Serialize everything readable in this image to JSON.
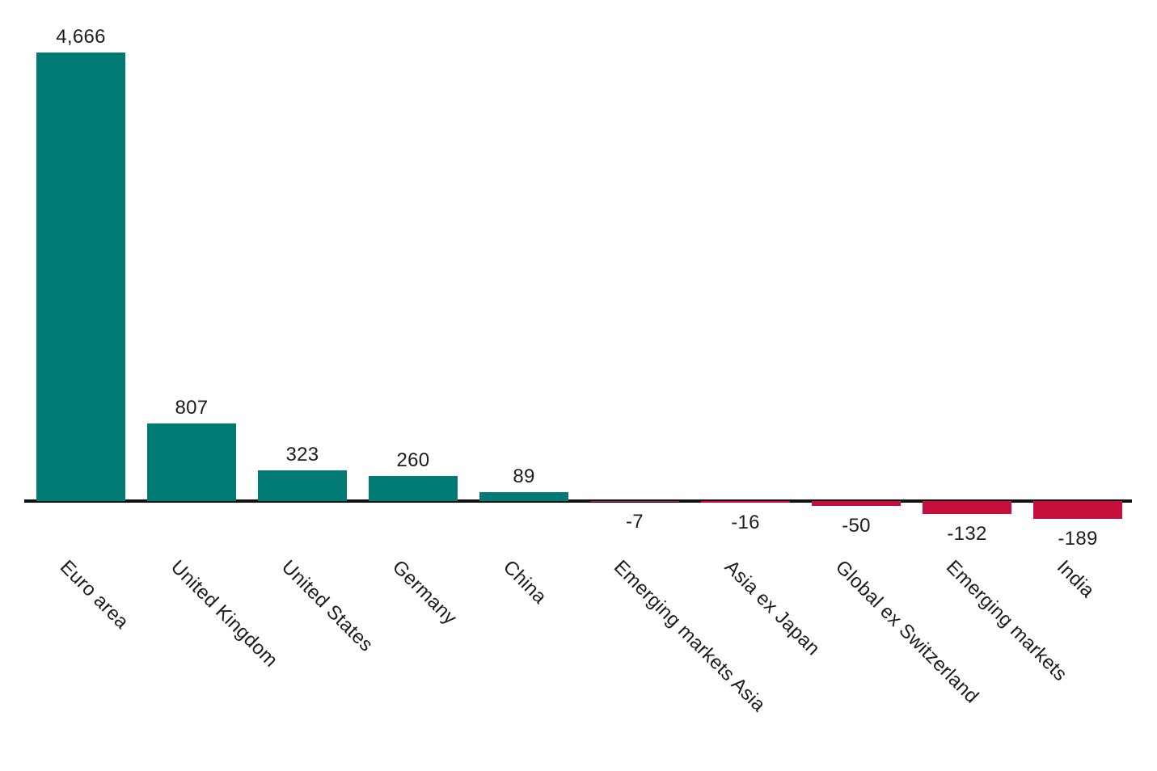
{
  "chart_data": {
    "type": "bar",
    "categories": [
      "Euro area",
      "United Kingdom",
      "United States",
      "Germany",
      "China",
      "Emerging markets Asia",
      "Asia ex Japan",
      "Global ex Switzerland",
      "Emerging markets",
      "India"
    ],
    "values": [
      4666,
      807,
      323,
      260,
      89,
      -7,
      -16,
      -50,
      -132,
      -189
    ],
    "value_labels": [
      "4,666",
      "807",
      "323",
      "260",
      "89",
      "-7",
      "-16",
      "-50",
      "-132",
      "-189"
    ],
    "title": "",
    "xlabel": "",
    "ylabel": "",
    "ylim": [
      -250,
      4800
    ],
    "grid": false,
    "legend": null,
    "baseline": 0,
    "colors": {
      "positive_bar": "#007a72",
      "negative_bar": "#c50f3c",
      "axis": "#111111",
      "text": "#1d1d1b",
      "background": "#ffffff"
    }
  }
}
